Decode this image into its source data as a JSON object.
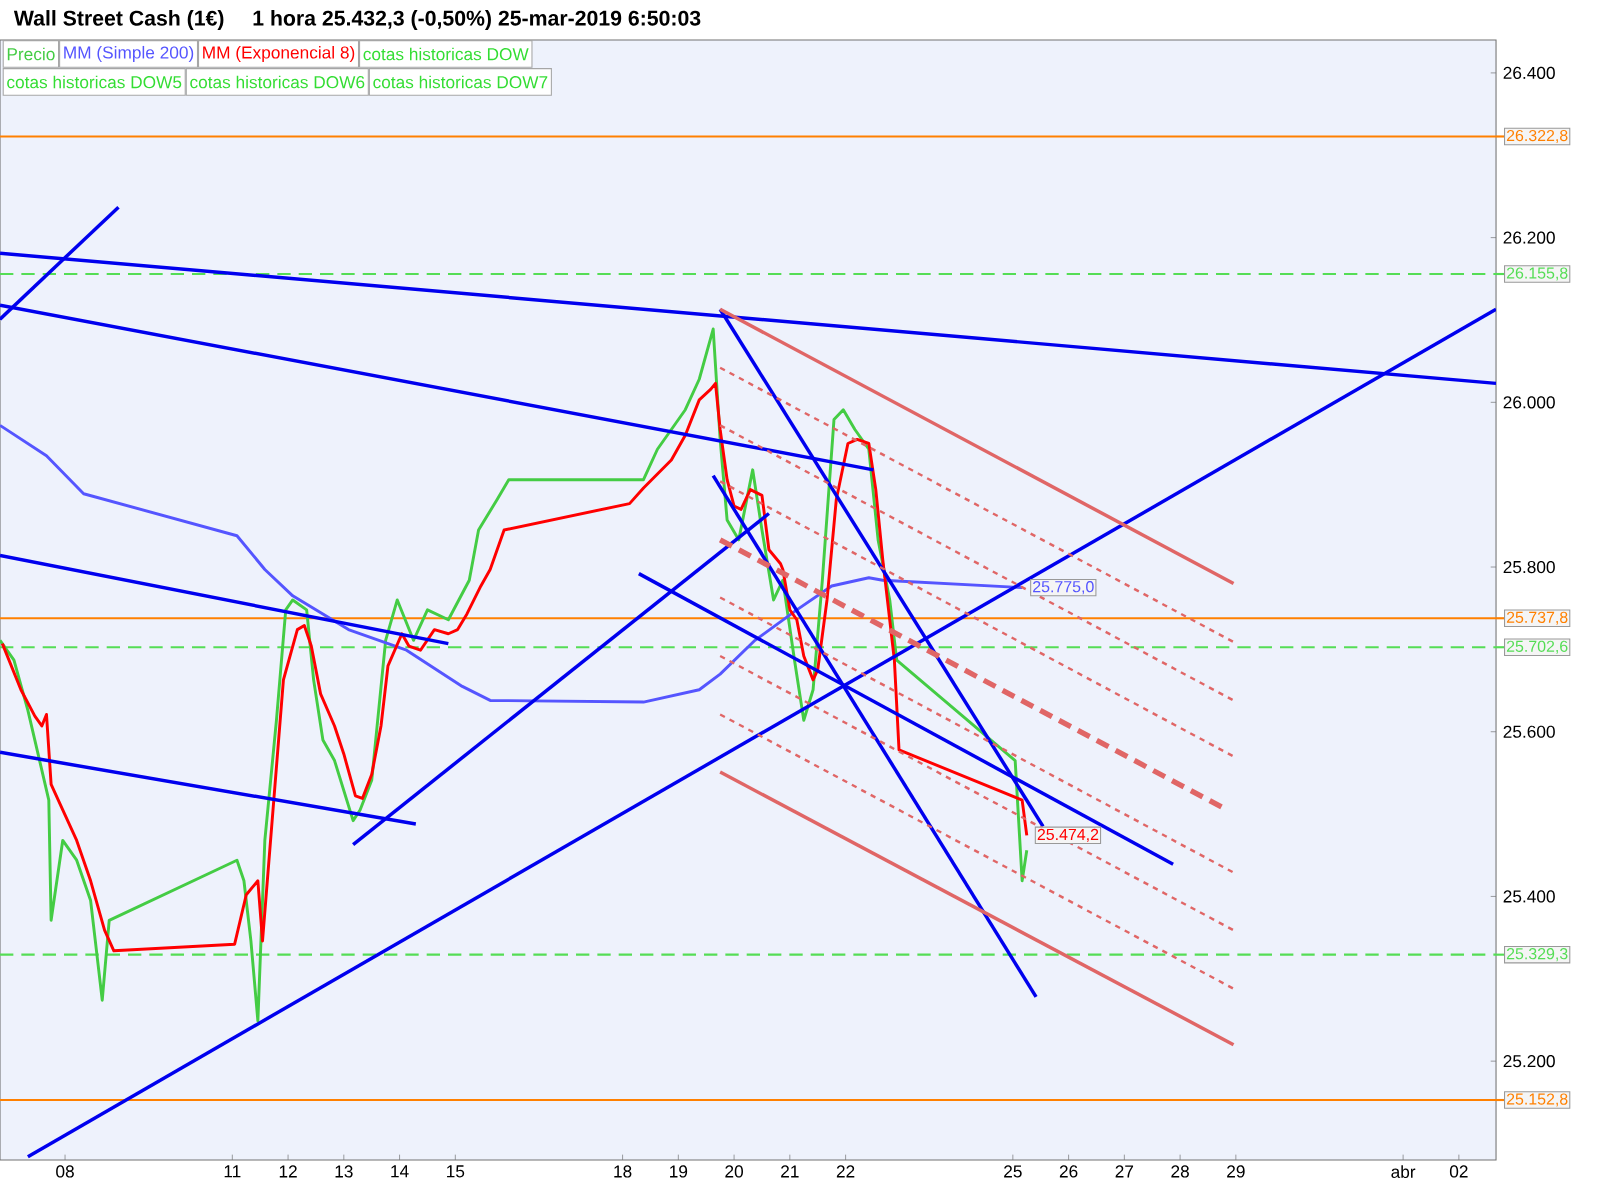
{
  "chart_data": {
    "type": "line",
    "title": "Wall Street Cash (1€)",
    "subtitle": "1 hora   25.432,3 (-0,50%)   25-mar-2019 6:50:03",
    "xlim": [
      "2019-03-06T20:00",
      "2019-04-02T16:00"
    ],
    "ylim": [
      25080,
      26440
    ],
    "xticks": [
      {
        "value": "2019-03-08",
        "label": "08"
      },
      {
        "value": "2019-03-11",
        "label": "11"
      },
      {
        "value": "2019-03-12",
        "label": "12"
      },
      {
        "value": "2019-03-13",
        "label": "13"
      },
      {
        "value": "2019-03-14",
        "label": "14"
      },
      {
        "value": "2019-03-15",
        "label": "15"
      },
      {
        "value": "2019-03-18",
        "label": "18"
      },
      {
        "value": "2019-03-19",
        "label": "19"
      },
      {
        "value": "2019-03-20",
        "label": "20"
      },
      {
        "value": "2019-03-21",
        "label": "21"
      },
      {
        "value": "2019-03-22",
        "label": "22"
      },
      {
        "value": "2019-03-25",
        "label": "25"
      },
      {
        "value": "2019-03-26",
        "label": "26"
      },
      {
        "value": "2019-03-27",
        "label": "27"
      },
      {
        "value": "2019-03-28",
        "label": "28"
      },
      {
        "value": "2019-03-29",
        "label": "29"
      },
      {
        "value": "2019-04-01",
        "label": "abr"
      },
      {
        "value": "2019-04-02",
        "label": "02"
      }
    ],
    "yticks": [
      {
        "value": 25200,
        "label": "25.200"
      },
      {
        "value": 25400,
        "label": "25.400"
      },
      {
        "value": 25600,
        "label": "25.600"
      },
      {
        "value": 25800,
        "label": "25.800"
      },
      {
        "value": 26000,
        "label": "26.000"
      },
      {
        "value": 26200,
        "label": "26.200"
      },
      {
        "value": 26400,
        "label": "26.400"
      }
    ],
    "legend": "top left",
    "series": [
      {
        "name": "Precio",
        "color": "#44cc44",
        "x": [
          "2019-03-06T20:00",
          "2019-03-07T02:00",
          "2019-03-07T08:00",
          "2019-03-07T17:00",
          "2019-03-07T18:00",
          "2019-03-07T23:00",
          "2019-03-08T05:00",
          "2019-03-08T11:00",
          "2019-03-08T16:00",
          "2019-03-08T19:00",
          "2019-03-11T02:00",
          "2019-03-11T05:00",
          "2019-03-11T08:00",
          "2019-03-11T11:00",
          "2019-03-11T14:00",
          "2019-03-11T19:00",
          "2019-03-11T23:00",
          "2019-03-12T02:00",
          "2019-03-12T08:00",
          "2019-03-12T11:00",
          "2019-03-12T15:00",
          "2019-03-12T20:00",
          "2019-03-13T04:00",
          "2019-03-13T07:00",
          "2019-03-13T12:00",
          "2019-03-13T18:00",
          "2019-03-13T23:00",
          "2019-03-14T06:00",
          "2019-03-14T12:00",
          "2019-03-14T21:00",
          "2019-03-15T06:00",
          "2019-03-15T10:00",
          "2019-03-15T18:00",
          "2019-03-15T23:00",
          "2019-03-18T09:00",
          "2019-03-18T15:00",
          "2019-03-18T21:00",
          "2019-03-19T03:00",
          "2019-03-19T09:00",
          "2019-03-19T15:00",
          "2019-03-19T18:00",
          "2019-03-19T21:00",
          "2019-03-20T02:00",
          "2019-03-20T08:00",
          "2019-03-20T12:00",
          "2019-03-20T17:00",
          "2019-03-20T21:00",
          "2019-03-21T02:00",
          "2019-03-21T06:00",
          "2019-03-21T10:00",
          "2019-03-21T14:00",
          "2019-03-21T19:00",
          "2019-03-21T23:00",
          "2019-03-22T04:00",
          "2019-03-22T10:00",
          "2019-03-22T14:00",
          "2019-03-22T19:00",
          "2019-03-22T22:00",
          "2019-03-25T01:00",
          "2019-03-25T04:00",
          "2019-03-25T06:00"
        ],
        "values": [
          25711,
          25687,
          25626,
          25517,
          25371,
          25468,
          25444,
          25395,
          25274,
          25371,
          25444,
          25419,
          25346,
          25249,
          25468,
          25614,
          25748,
          25760,
          25748,
          25663,
          25590,
          25565,
          25492,
          25505,
          25541,
          25711,
          25760,
          25711,
          25748,
          25736,
          25784,
          25845,
          25882,
          25906,
          25906,
          25943,
          25967,
          25991,
          26028,
          26089,
          25955,
          25857,
          25833,
          25918,
          25845,
          25760,
          25784,
          25687,
          25614,
          25651,
          25784,
          25979,
          25991,
          25967,
          25943,
          25833,
          25760,
          25687,
          25565,
          25419,
          25456
        ]
      },
      {
        "name": "MM (Simple 200)",
        "color": "#5555ff",
        "x": [
          "2019-03-06T20:00",
          "2019-03-07T16:00",
          "2019-03-08T08:00",
          "2019-03-11T02:00",
          "2019-03-11T14:00",
          "2019-03-12T02:00",
          "2019-03-13T02:00",
          "2019-03-14T03:00",
          "2019-03-15T03:00",
          "2019-03-15T15:00",
          "2019-03-18T09:00",
          "2019-03-19T09:00",
          "2019-03-19T18:00",
          "2019-03-20T09:00",
          "2019-03-21T03:00",
          "2019-03-21T18:00",
          "2019-03-22T10:00",
          "2019-03-22T16:00",
          "2019-03-25T04:00"
        ],
        "values": [
          25972,
          25935,
          25889,
          25838,
          25797,
          25765,
          25724,
          25699,
          25655,
          25638,
          25636,
          25651,
          25670,
          25711,
          25748,
          25777,
          25787,
          25784,
          25775.0
        ],
        "value_labels": [
          null,
          null,
          null,
          null,
          null,
          null,
          null,
          null,
          null,
          null,
          null,
          null,
          null,
          null,
          null,
          null,
          null,
          null,
          "25.775,0"
        ]
      },
      {
        "name": "MM (Exponencial 8)",
        "color": "#ff0000",
        "x": [
          "2019-03-06T21:00",
          "2019-03-07T05:00",
          "2019-03-07T11:00",
          "2019-03-07T14:00",
          "2019-03-07T16:00",
          "2019-03-07T18:00",
          "2019-03-07T23:00",
          "2019-03-08T05:00",
          "2019-03-08T11:00",
          "2019-03-08T17:00",
          "2019-03-08T21:00",
          "2019-03-11T01:00",
          "2019-03-11T06:00",
          "2019-03-11T11:00",
          "2019-03-11T13:00",
          "2019-03-11T22:00",
          "2019-03-12T04:00",
          "2019-03-12T07:00",
          "2019-03-12T10:00",
          "2019-03-12T14:00",
          "2019-03-12T20:00",
          "2019-03-13T00:00",
          "2019-03-13T05:00",
          "2019-03-13T08:00",
          "2019-03-13T12:00",
          "2019-03-13T16:00",
          "2019-03-13T19:00",
          "2019-03-14T01:00",
          "2019-03-14T04:00",
          "2019-03-14T09:00",
          "2019-03-14T15:00",
          "2019-03-14T21:00",
          "2019-03-15T01:00",
          "2019-03-15T05:00",
          "2019-03-15T11:00",
          "2019-03-15T15:00",
          "2019-03-15T21:00",
          "2019-03-18T03:00",
          "2019-03-18T09:00",
          "2019-03-18T15:00",
          "2019-03-18T21:00",
          "2019-03-19T03:00",
          "2019-03-19T09:00",
          "2019-03-19T14:00",
          "2019-03-19T16:00",
          "2019-03-19T18:00",
          "2019-03-19T21:00",
          "2019-03-20T00:00",
          "2019-03-20T03:00",
          "2019-03-20T07:00",
          "2019-03-20T12:00",
          "2019-03-20T15:00",
          "2019-03-20T20:00",
          "2019-03-20T21:00",
          "2019-03-21T00:00",
          "2019-03-21T03:00",
          "2019-03-21T06:00",
          "2019-03-21T10:00",
          "2019-03-21T12:00",
          "2019-03-21T16:00",
          "2019-03-21T20:00",
          "2019-03-22T01:00",
          "2019-03-22T05:00",
          "2019-03-22T10:00",
          "2019-03-22T13:00",
          "2019-03-22T16:00",
          "2019-03-22T21:00",
          "2019-03-22T23:00",
          "2019-03-25T04:00",
          "2019-03-25T06:00"
        ],
        "values": [
          25707,
          25651,
          25619,
          25607,
          25621,
          25536,
          25505,
          25468,
          25419,
          25359,
          25334,
          25342,
          25402,
          25419,
          25346,
          25663,
          25724,
          25729,
          25704,
          25646,
          25607,
          25573,
          25522,
          25519,
          25548,
          25607,
          25680,
          25719,
          25704,
          25699,
          25724,
          25719,
          25724,
          25743,
          25777,
          25797,
          25845,
          25877,
          25896,
          25913,
          25930,
          25960,
          26003,
          26016,
          26023,
          25967,
          25906,
          25874,
          25870,
          25894,
          25887,
          25821,
          25804,
          25797,
          25748,
          25736,
          25692,
          25663,
          25675,
          25760,
          25882,
          25950,
          25955,
          25950,
          25894,
          25809,
          25687,
          25578,
          25517,
          25474.2
        ],
        "value_labels": [
          null,
          null,
          null,
          null,
          null,
          null,
          null,
          null,
          null,
          null,
          null,
          null,
          null,
          null,
          null,
          null,
          null,
          null,
          null,
          null,
          null,
          null,
          null,
          null,
          null,
          null,
          null,
          null,
          null,
          null,
          null,
          null,
          null,
          null,
          null,
          null,
          null,
          null,
          null,
          null,
          null,
          null,
          null,
          null,
          null,
          null,
          null,
          null,
          null,
          null,
          null,
          null,
          null,
          null,
          null,
          null,
          null,
          null,
          null,
          null,
          null,
          null,
          null,
          null,
          null,
          null,
          null,
          null,
          null,
          "25.474,2"
        ]
      },
      {
        "color": "#0000ee",
        "x": [
          "2019-03-06T20:00",
          "2019-04-02T16:00"
        ],
        "values": [
          26181,
          26023
        ]
      },
      {
        "color": "#0000ee",
        "x": [
          "2019-03-06T20:00",
          "2019-03-22T12:00"
        ],
        "values": [
          26118,
          25918
        ]
      },
      {
        "color": "#0000ee",
        "x": [
          "2019-03-06T20:00",
          "2019-03-08T23:00"
        ],
        "values": [
          26101,
          26237
        ]
      },
      {
        "color": "#0000ee",
        "x": [
          "2019-03-06T20:00",
          "2019-03-14T21:00"
        ],
        "values": [
          25814,
          25707
        ]
      },
      {
        "color": "#0000ee",
        "x": [
          "2019-03-06T20:00",
          "2019-03-14T07:00"
        ],
        "values": [
          25575,
          25488
        ]
      },
      {
        "color": "#0000ee",
        "x": [
          "2019-03-13T04:00",
          "2019-03-20T15:00"
        ],
        "values": [
          25463,
          25865
        ]
      },
      {
        "color": "#0000ee",
        "x": [
          "2019-03-07T08:00",
          "2019-04-02T16:00"
        ],
        "values": [
          25084,
          26113
        ]
      },
      {
        "color": "#0000ee",
        "x": [
          "2019-03-19T15:00",
          "2019-03-25T10:00"
        ],
        "values": [
          25911,
          25278
        ]
      },
      {
        "color": "#0000ee",
        "x": [
          "2019-03-19T18:00",
          "2019-03-25T13:00"
        ],
        "values": [
          26113,
          25485
        ]
      },
      {
        "color": "#0000ee",
        "x": [
          "2019-03-18T07:00",
          "2019-03-27T21:00"
        ],
        "values": [
          25792,
          25439
        ]
      },
      {
        "color": "#e06666",
        "x": [
          "2019-03-19T18:00",
          "2019-03-28T23:00"
        ],
        "values": [
          26113,
          25780
        ]
      },
      {
        "color": "#e06666",
        "x": [
          "2019-03-19T18:00",
          "2019-03-28T23:00"
        ],
        "values": [
          25551,
          25220
        ]
      },
      {
        "color": "#e06666",
        "line_style": "dashed",
        "x": [
          "2019-03-19T18:00",
          "2019-03-28T19:00"
        ],
        "values": [
          25833,
          25507
        ]
      },
      {
        "color": "#e06666",
        "line_style": "dotted",
        "x": [
          "2019-03-19T18:00",
          "2019-03-28T23:00"
        ],
        "values": [
          26042,
          25709
        ]
      },
      {
        "color": "#e06666",
        "line_style": "dotted",
        "x": [
          "2019-03-19T18:00",
          "2019-03-28T23:00"
        ],
        "values": [
          25972,
          25638
        ]
      },
      {
        "color": "#e06666",
        "line_style": "dotted",
        "x": [
          "2019-03-19T18:00",
          "2019-03-28T23:00"
        ],
        "values": [
          25904,
          25570
        ]
      },
      {
        "color": "#e06666",
        "line_style": "dotted",
        "x": [
          "2019-03-19T18:00",
          "2019-03-28T23:00"
        ],
        "values": [
          25763,
          25429
        ]
      },
      {
        "color": "#e06666",
        "line_style": "dotted",
        "x": [
          "2019-03-19T18:00",
          "2019-03-28T23:00"
        ],
        "values": [
          25692,
          25359
        ]
      },
      {
        "color": "#e06666",
        "line_style": "dotted",
        "x": [
          "2019-03-19T18:00",
          "2019-03-28T23:00"
        ],
        "values": [
          25621,
          25288
        ]
      }
    ],
    "ref_lines": [
      {
        "axis": "y",
        "value": 26322.8,
        "label": "26.322,8",
        "color": "#ff8000"
      },
      {
        "axis": "y",
        "value": 26155.8,
        "label": "26.155,8",
        "color": "#55dd55",
        "line_style": "dashed"
      },
      {
        "axis": "y",
        "value": 25737.8,
        "label": "25.737,8",
        "color": "#ff8000"
      },
      {
        "axis": "y",
        "value": 25702.6,
        "label": "25.702,6",
        "color": "#55dd55",
        "line_style": "dashed"
      },
      {
        "axis": "y",
        "value": 25329.3,
        "label": "25.329,3",
        "color": "#55dd55",
        "line_style": "dashed"
      },
      {
        "axis": "y",
        "value": 25152.8,
        "label": "25.152,8",
        "color": "#ff8000"
      }
    ],
    "annotations": [
      "cotas historicas DOW",
      "cotas historicas DOW5",
      "cotas historicas DOW6",
      "cotas historicas DOW7"
    ]
  }
}
